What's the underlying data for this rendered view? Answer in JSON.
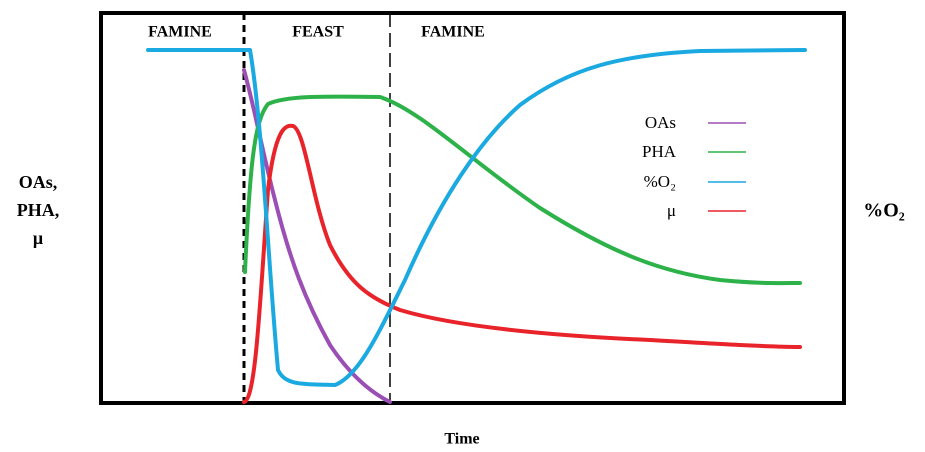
{
  "phase_labels": [
    "FAMINE",
    "FEAST",
    "FAMINE"
  ],
  "legend": [
    "OAs",
    "PHA",
    "%O₂",
    "μ"
  ],
  "left_axis_label": [
    "OAs,",
    "PHA,",
    "μ"
  ],
  "right_axis_label": "%O₂",
  "x_axis_label": "Time"
}
